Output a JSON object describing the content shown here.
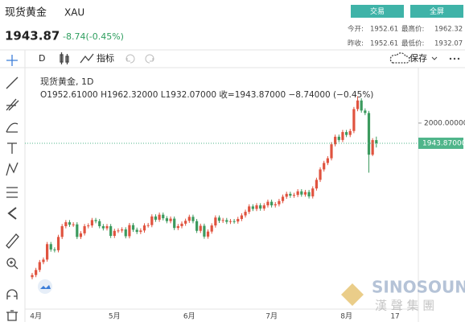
{
  "header": {
    "name": "现货黄金",
    "symbol": "XAU",
    "buttons": [
      "交易",
      "全屏"
    ],
    "price": "1943.87",
    "change": "-8.74(-0.45%)",
    "stats": [
      [
        "今开:",
        "1952.61",
        "最高价:",
        "1962.32"
      ],
      [
        "昨收:",
        "1952.61",
        "最低价:",
        "1932.07"
      ]
    ]
  },
  "toolbar": {
    "interval": "D",
    "indicators": "指标",
    "save": "保存"
  },
  "chart_data": {
    "type": "candlestick",
    "title": "现货黄金, 1D",
    "legend_text": "O1952.61000  H1962.32000  L1932.07000  收=1943.87000  −8.74000 (−0.45%)",
    "categories": [
      null,
      "4月",
      null,
      null,
      null,
      null,
      null,
      null,
      null,
      null,
      null,
      null,
      null,
      null,
      null,
      null,
      null,
      null,
      null,
      null,
      null,
      null,
      "5月",
      null,
      null,
      null,
      null,
      null,
      null,
      null,
      null,
      null,
      null,
      null,
      null,
      null,
      null,
      null,
      null,
      null,
      null,
      null,
      "6月",
      null,
      null,
      null,
      null,
      null,
      null,
      null,
      null,
      null,
      null,
      null,
      null,
      null,
      null,
      null,
      null,
      null,
      null,
      null,
      null,
      null,
      "7月",
      null,
      null,
      null,
      null,
      null,
      null,
      null,
      null,
      null,
      null,
      null,
      null,
      null,
      null,
      null,
      null,
      null,
      null,
      null,
      "8月",
      null,
      null,
      null,
      null,
      null,
      null,
      null,
      null,
      null,
      null,
      null,
      null,
      "17"
    ],
    "open": [
      1571,
      1577,
      1591,
      1613,
      1620,
      1663,
      1648,
      1646,
      1683,
      1713,
      1724,
      1717,
      1718,
      1683,
      1693,
      1713,
      1715,
      1730,
      1727,
      1713,
      1707,
      1713,
      1686,
      1700,
      1701,
      1704,
      1685,
      1716,
      1703,
      1697,
      1701,
      1715,
      1716,
      1740,
      1731,
      1745,
      1735,
      1727,
      1734,
      1708,
      1713,
      1720,
      1728,
      1739,
      1727,
      1700,
      1714,
      1684,
      1698,
      1715,
      1737,
      1728,
      1730,
      1725,
      1727,
      1726,
      1733,
      1743,
      1753,
      1768,
      1761,
      1771,
      1762,
      1771,
      1781,
      1771,
      1774,
      1783,
      1795,
      1803,
      1798,
      1800,
      1810,
      1801,
      1808,
      1796,
      1818,
      1842,
      1871,
      1889,
      1902,
      1941,
      1962,
      1953,
      1975,
      1967,
      1978,
      2039,
      2063,
      2035,
      2028,
      1912,
      1952.61,
      null,
      null,
      null,
      null,
      null
    ],
    "high": [
      1583,
      1597,
      1619,
      1626,
      1669,
      1669,
      1654,
      1689,
      1719,
      1730,
      1730,
      1724,
      1724,
      1699,
      1719,
      1721,
      1736,
      1736,
      1733,
      1719,
      1719,
      1719,
      1706,
      1707,
      1710,
      1710,
      1722,
      1722,
      1709,
      1707,
      1721,
      1722,
      1746,
      1746,
      1751,
      1751,
      1741,
      1740,
      1740,
      1719,
      1726,
      1734,
      1745,
      1745,
      1733,
      1720,
      1720,
      1704,
      1721,
      1743,
      1743,
      1736,
      1736,
      1733,
      1733,
      1739,
      1749,
      1759,
      1774,
      1774,
      1777,
      1777,
      1777,
      1787,
      1787,
      1780,
      1789,
      1801,
      1809,
      1809,
      1806,
      1816,
      1816,
      1814,
      1814,
      1824,
      1848,
      1877,
      1895,
      1908,
      1947,
      1968,
      1968,
      1981,
      1981,
      1984,
      2045,
      2075,
      2069,
      2041,
      2034,
      1958,
      1962.32,
      null,
      null,
      null,
      null,
      null
    ],
    "low": [
      1565,
      1571,
      1585,
      1607,
      1614,
      1642,
      1640,
      1640,
      1677,
      1707,
      1711,
      1711,
      1677,
      1677,
      1687,
      1707,
      1709,
      1721,
      1707,
      1701,
      1701,
      1680,
      1680,
      1694,
      1695,
      1679,
      1679,
      1697,
      1691,
      1691,
      1695,
      1709,
      1710,
      1725,
      1725,
      1729,
      1721,
      1721,
      1702,
      1702,
      1707,
      1714,
      1722,
      1721,
      1694,
      1694,
      1678,
      1678,
      1692,
      1709,
      1722,
      1722,
      1719,
      1719,
      1720,
      1720,
      1727,
      1737,
      1747,
      1755,
      1755,
      1756,
      1756,
      1765,
      1765,
      1765,
      1768,
      1777,
      1789,
      1792,
      1792,
      1794,
      1795,
      1795,
      1790,
      1790,
      1812,
      1836,
      1865,
      1883,
      1896,
      1935,
      1947,
      1947,
      1961,
      1961,
      1972,
      2033,
      2029,
      2022,
      1862,
      1908,
      1932.07,
      null,
      null,
      null,
      null,
      null
    ],
    "close": [
      1577,
      1591,
      1613,
      1620,
      1663,
      1648,
      1646,
      1683,
      1713,
      1724,
      1717,
      1718,
      1683,
      1693,
      1713,
      1715,
      1730,
      1727,
      1713,
      1707,
      1713,
      1686,
      1700,
      1701,
      1704,
      1685,
      1716,
      1703,
      1697,
      1701,
      1715,
      1716,
      1740,
      1731,
      1745,
      1735,
      1727,
      1734,
      1708,
      1713,
      1720,
      1728,
      1739,
      1727,
      1700,
      1714,
      1684,
      1698,
      1715,
      1737,
      1728,
      1730,
      1725,
      1727,
      1726,
      1733,
      1743,
      1753,
      1768,
      1761,
      1771,
      1762,
      1771,
      1781,
      1771,
      1774,
      1783,
      1795,
      1803,
      1798,
      1800,
      1810,
      1801,
      1808,
      1796,
      1818,
      1842,
      1871,
      1889,
      1902,
      1941,
      1962,
      1953,
      1975,
      1967,
      1978,
      2039,
      2063,
      2035,
      2028,
      1912,
      1952.61,
      1943.87,
      null,
      null,
      null,
      null,
      null
    ],
    "up_color": "#e0533f",
    "down_color": "#3c9a5e",
    "last_color": "#4fb58a",
    "ylim": [
      1491,
      2141
    ],
    "yticks": [
      {
        "value": 2000,
        "label": "2000.00000"
      }
    ],
    "last_price": {
      "value": 1943.87,
      "label": "1943.87000"
    }
  },
  "watermark": {
    "brand": "SINOSOUND",
    "name": "漢 聲 集 團"
  }
}
